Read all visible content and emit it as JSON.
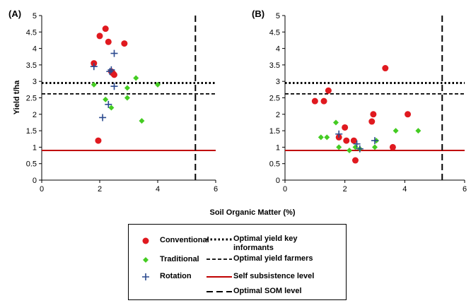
{
  "figure": {
    "xlabel": "Soil Organic Matter (%)",
    "ylabel": "Yield t/ha"
  },
  "colors": {
    "conventional": "#e0191f",
    "traditional": "#44cc22",
    "rotation": "#2b4a8f",
    "subsistence": "#c00000",
    "black": "#000000"
  },
  "legend": {
    "conventional": "Conventional",
    "traditional": "Traditional",
    "rotation": "Rotation",
    "key_informants": "Optimal yield key informants",
    "farmers": "Optimal yield farmers",
    "subsistence": "Self subsistence level",
    "som": "Optimal SOM level"
  },
  "chart_data": [
    {
      "type": "scatter",
      "panel_label": "(A)",
      "xlim": [
        0,
        6
      ],
      "ylim": [
        0,
        5
      ],
      "xticks": [
        0,
        2,
        4,
        6
      ],
      "yticks": [
        0,
        0.5,
        1,
        1.5,
        2,
        2.5,
        3,
        3.5,
        4,
        4.5,
        5
      ],
      "ytick_labels": [
        "0",
        "0.5",
        "1",
        "1.5",
        "2",
        "2.5",
        "3",
        "3.5",
        "4",
        "4.5",
        "5"
      ],
      "xlabel": "Soil Organic Matter (%)",
      "ylabel": "Yield t/ha",
      "reference_lines": {
        "optimal_yield_key_informants": 2.95,
        "optimal_yield_farmers": 2.62,
        "self_subsistence_level": 0.9,
        "optimal_som_level": 5.3
      },
      "series": [
        {
          "name": "Conventional",
          "marker": "circle",
          "points": [
            [
              1.8,
              3.55
            ],
            [
              1.95,
              1.2
            ],
            [
              2.0,
              4.38
            ],
            [
              2.2,
              4.6
            ],
            [
              2.3,
              4.2
            ],
            [
              2.4,
              3.3
            ],
            [
              2.45,
              3.25
            ],
            [
              2.5,
              3.2
            ],
            [
              2.85,
              4.15
            ]
          ]
        },
        {
          "name": "Traditional",
          "marker": "diamond",
          "points": [
            [
              1.8,
              2.9
            ],
            [
              2.2,
              2.45
            ],
            [
              2.4,
              2.2
            ],
            [
              2.95,
              2.5
            ],
            [
              2.95,
              2.8
            ],
            [
              3.25,
              3.1
            ],
            [
              3.45,
              1.8
            ],
            [
              4.0,
              2.9
            ]
          ]
        },
        {
          "name": "Rotation",
          "marker": "plus",
          "points": [
            [
              1.8,
              3.45
            ],
            [
              2.1,
              1.9
            ],
            [
              2.3,
              2.3
            ],
            [
              2.35,
              3.3
            ],
            [
              2.4,
              3.35
            ],
            [
              2.5,
              2.85
            ],
            [
              2.5,
              3.85
            ]
          ]
        }
      ]
    },
    {
      "type": "scatter",
      "panel_label": "(B)",
      "xlim": [
        0,
        6
      ],
      "ylim": [
        0,
        5
      ],
      "xticks": [
        0,
        2,
        4,
        6
      ],
      "yticks": [
        0,
        0.5,
        1,
        1.5,
        2,
        2.5,
        3,
        3.5,
        4,
        4.5,
        5
      ],
      "ytick_labels": [
        "0",
        "0.5",
        "1",
        "1.5",
        "2",
        "2.5",
        "3",
        "3.5",
        "4",
        "4.5",
        "5"
      ],
      "xlabel": "",
      "ylabel": "",
      "reference_lines": {
        "optimal_yield_key_informants": 2.95,
        "optimal_yield_farmers": 2.62,
        "self_subsistence_level": 0.9,
        "optimal_som_level": 5.25
      },
      "series": [
        {
          "name": "Conventional",
          "marker": "circle",
          "points": [
            [
              1.0,
              2.4
            ],
            [
              1.3,
              2.4
            ],
            [
              1.45,
              2.72
            ],
            [
              1.8,
              1.3
            ],
            [
              2.0,
              1.6
            ],
            [
              2.05,
              1.2
            ],
            [
              2.3,
              1.2
            ],
            [
              2.35,
              0.6
            ],
            [
              2.9,
              1.78
            ],
            [
              2.95,
              2.0
            ],
            [
              3.35,
              3.4
            ],
            [
              3.6,
              1.0
            ],
            [
              4.1,
              2.0
            ]
          ]
        },
        {
          "name": "Traditional",
          "marker": "diamond",
          "points": [
            [
              1.2,
              1.3
            ],
            [
              1.4,
              1.3
            ],
            [
              1.7,
              1.75
            ],
            [
              1.8,
              1.0
            ],
            [
              2.15,
              0.9
            ],
            [
              2.35,
              1.0
            ],
            [
              2.5,
              0.95
            ],
            [
              3.0,
              1.0
            ],
            [
              3.05,
              1.2
            ],
            [
              3.7,
              1.5
            ],
            [
              4.45,
              1.5
            ]
          ]
        },
        {
          "name": "Rotation",
          "marker": "plus",
          "points": [
            [
              1.8,
              1.4
            ],
            [
              2.4,
              1.1
            ],
            [
              2.5,
              0.95
            ],
            [
              3.0,
              1.2
            ]
          ]
        }
      ]
    }
  ]
}
